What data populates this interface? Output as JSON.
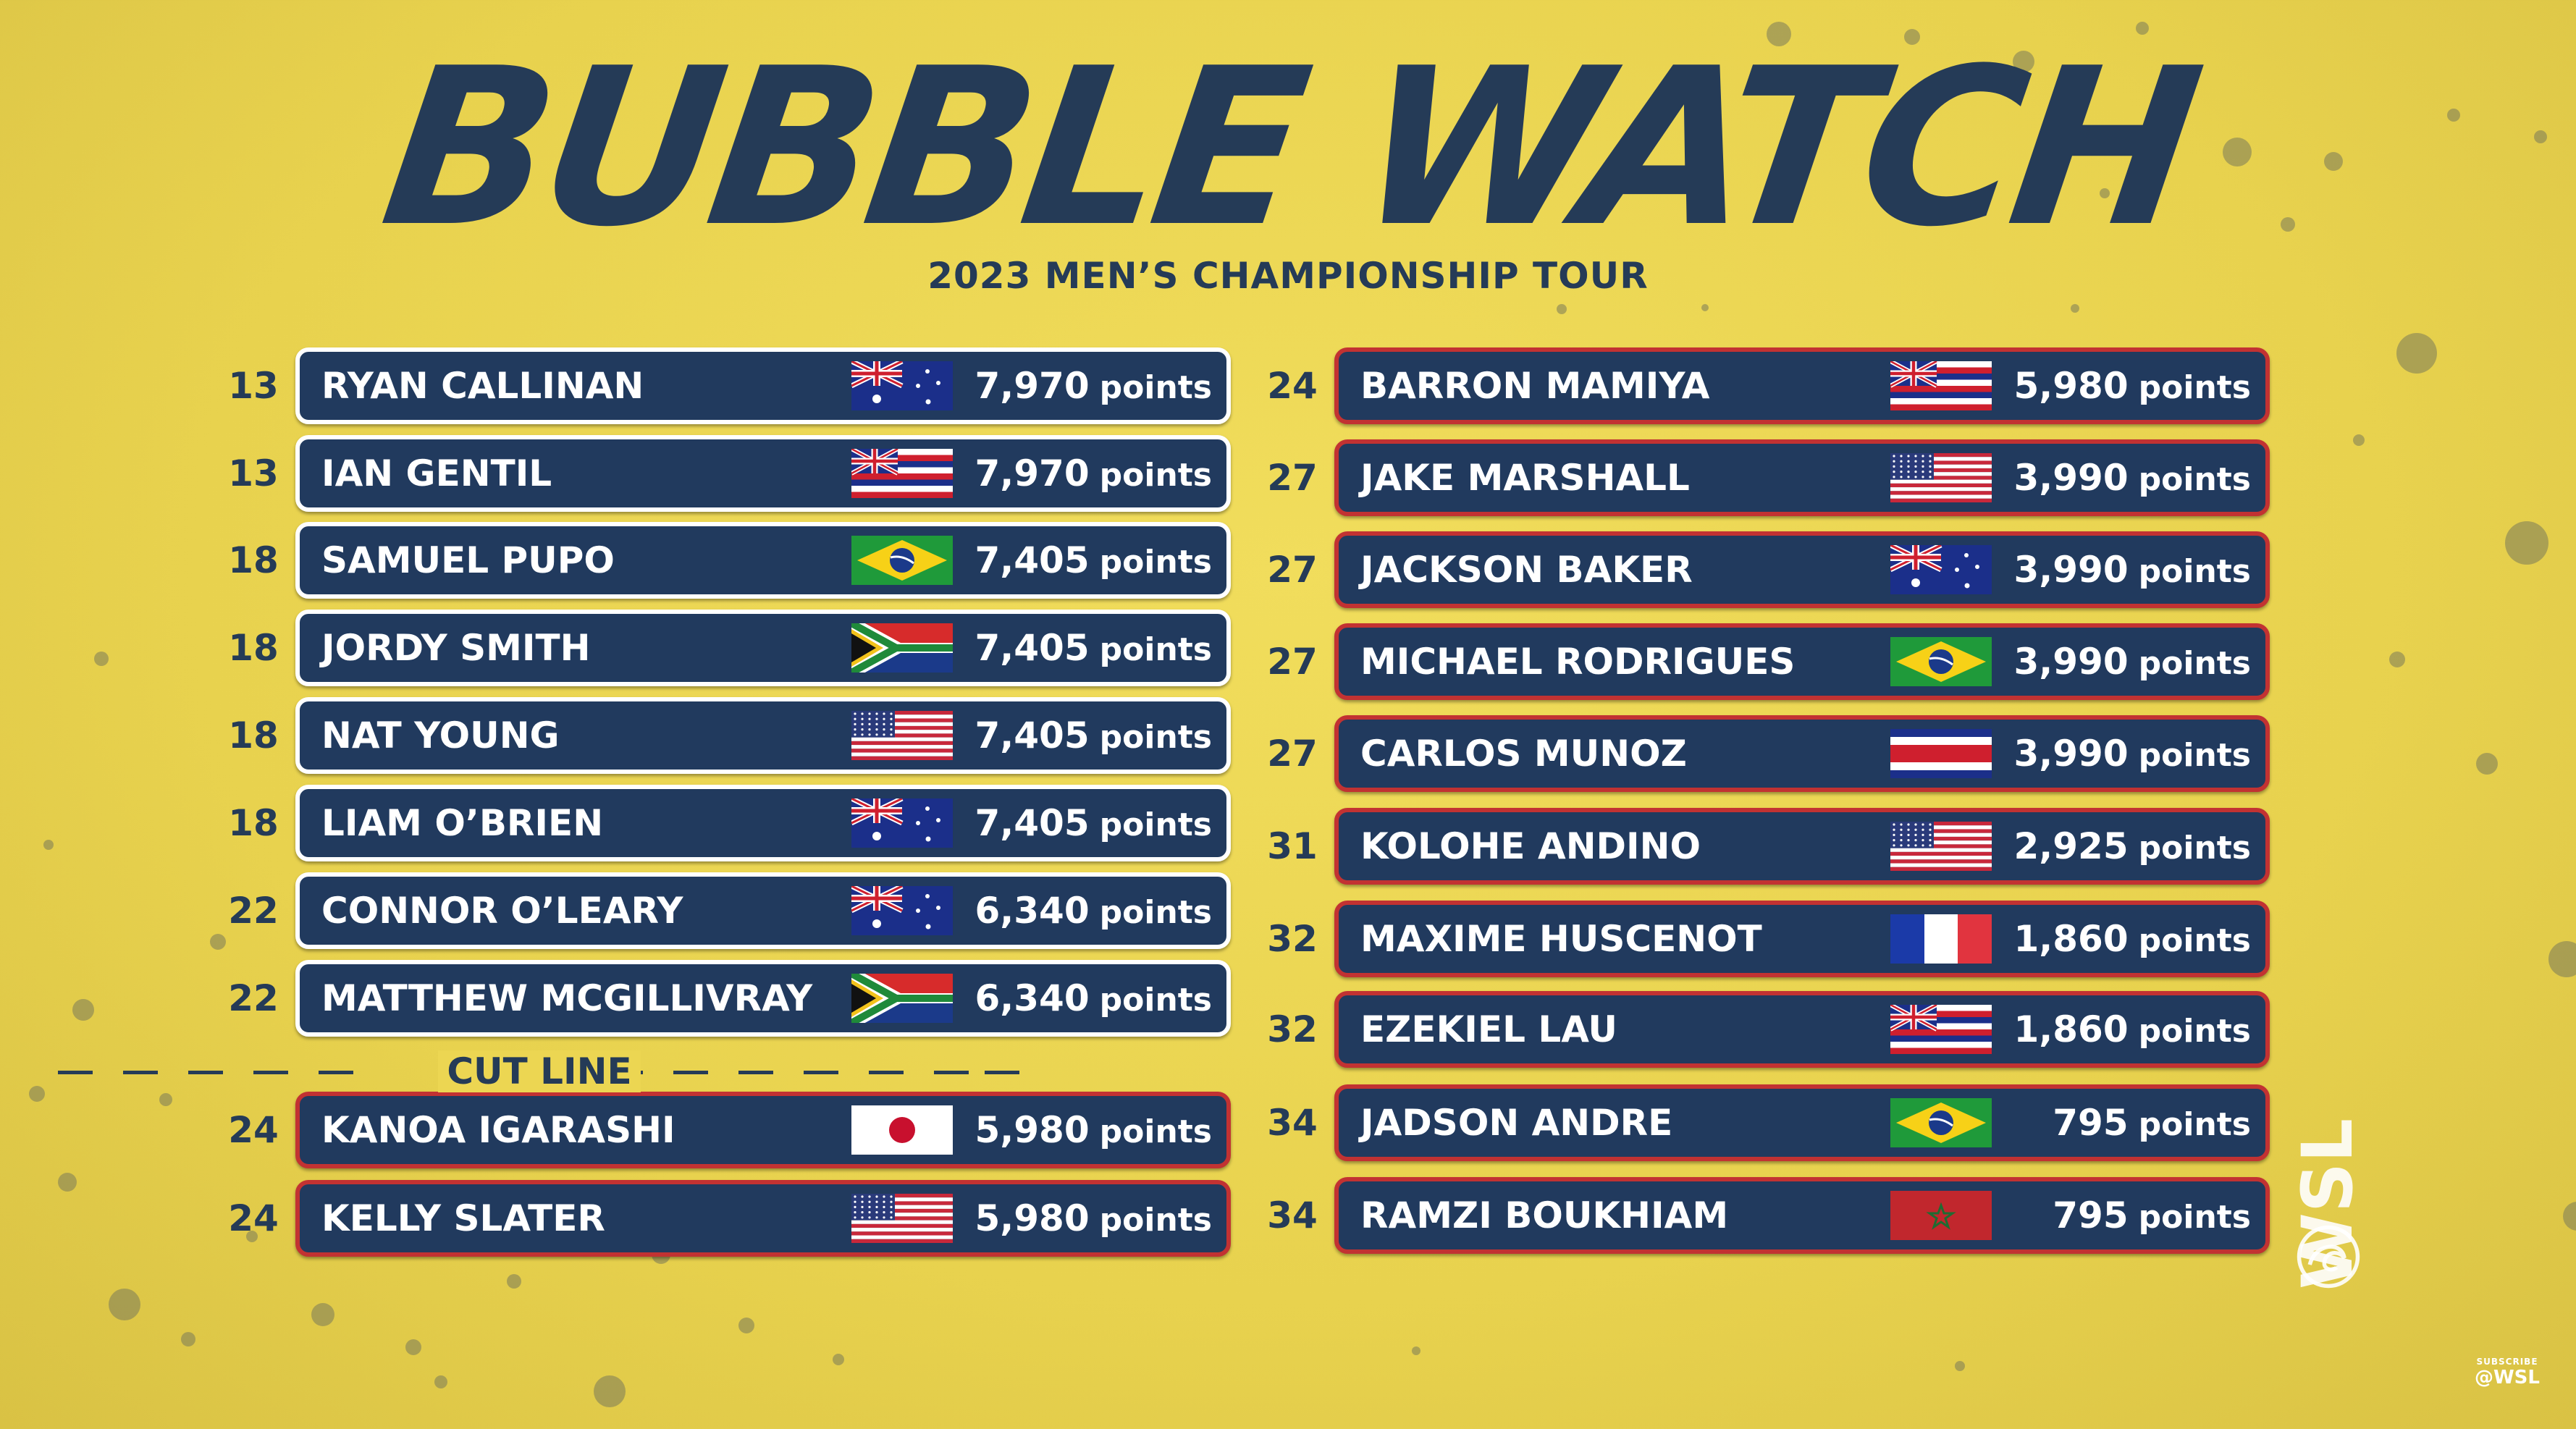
{
  "header": {
    "title": "BUBBLE WATCH",
    "subtitle": "2023 MEN’S CHAMPIONSHIP TOUR"
  },
  "points_unit": "points",
  "cut_line_label": "CUT LINE",
  "left_column": [
    {
      "rank": "13",
      "name": "RYAN CALLINAN",
      "flag": "australia-flag",
      "points": "7,970",
      "status": "above-cut"
    },
    {
      "rank": "13",
      "name": "IAN GENTIL",
      "flag": "hawaii-flag",
      "points": "7,970",
      "status": "above-cut"
    },
    {
      "rank": "18",
      "name": "SAMUEL PUPO",
      "flag": "brazil-flag",
      "points": "7,405",
      "status": "above-cut"
    },
    {
      "rank": "18",
      "name": "JORDY SMITH",
      "flag": "south-africa-flag",
      "points": "7,405",
      "status": "above-cut"
    },
    {
      "rank": "18",
      "name": "NAT YOUNG",
      "flag": "usa-flag",
      "points": "7,405",
      "status": "above-cut"
    },
    {
      "rank": "18",
      "name": "LIAM O’BRIEN",
      "flag": "australia-flag",
      "points": "7,405",
      "status": "above-cut"
    },
    {
      "rank": "22",
      "name": "CONNOR O’LEARY",
      "flag": "australia-flag",
      "points": "6,340",
      "status": "above-cut"
    },
    {
      "rank": "22",
      "name": "MATTHEW MCGILLIVRAY",
      "flag": "south-africa-flag",
      "points": "6,340",
      "status": "above-cut"
    },
    {
      "rank": "24",
      "name": "KANOA IGARASHI",
      "flag": "japan-flag",
      "points": "5,980",
      "status": "below-cut"
    },
    {
      "rank": "24",
      "name": "KELLY SLATER",
      "flag": "usa-flag",
      "points": "5,980",
      "status": "below-cut"
    }
  ],
  "right_column": [
    {
      "rank": "24",
      "name": "BARRON MAMIYA",
      "flag": "hawaii-flag",
      "points": "5,980",
      "status": "below-cut"
    },
    {
      "rank": "27",
      "name": "JAKE MARSHALL",
      "flag": "usa-flag",
      "points": "3,990",
      "status": "below-cut"
    },
    {
      "rank": "27",
      "name": "JACKSON BAKER",
      "flag": "australia-flag",
      "points": "3,990",
      "status": "below-cut"
    },
    {
      "rank": "27",
      "name": "MICHAEL RODRIGUES",
      "flag": "brazil-flag",
      "points": "3,990",
      "status": "below-cut"
    },
    {
      "rank": "27",
      "name": "CARLOS MUNOZ",
      "flag": "costa-rica-flag",
      "points": "3,990",
      "status": "below-cut"
    },
    {
      "rank": "31",
      "name": "KOLOHE ANDINO",
      "flag": "usa-flag",
      "points": "2,925",
      "status": "below-cut"
    },
    {
      "rank": "32",
      "name": "MAXIME HUSCENOT",
      "flag": "france-flag",
      "points": "1,860",
      "status": "below-cut"
    },
    {
      "rank": "32",
      "name": "EZEKIEL LAU",
      "flag": "hawaii-flag",
      "points": "1,860",
      "status": "below-cut"
    },
    {
      "rank": "34",
      "name": "JADSON ANDRE",
      "flag": "brazil-flag",
      "points": "795",
      "status": "below-cut"
    },
    {
      "rank": "34",
      "name": "RAMZI BOUKHIAM",
      "flag": "morocco-flag",
      "points": "795",
      "status": "below-cut"
    }
  ],
  "branding": {
    "vertical_logo": "WSL",
    "subscribe_small": "SUBSCRIBE",
    "subscribe_handle": "@WSL"
  },
  "colors": {
    "background": "#ecd652",
    "bar": "#213a5e",
    "above_cut_border": "#ffffff",
    "below_cut_border": "#c23232",
    "text_dark": "#253b57"
  }
}
